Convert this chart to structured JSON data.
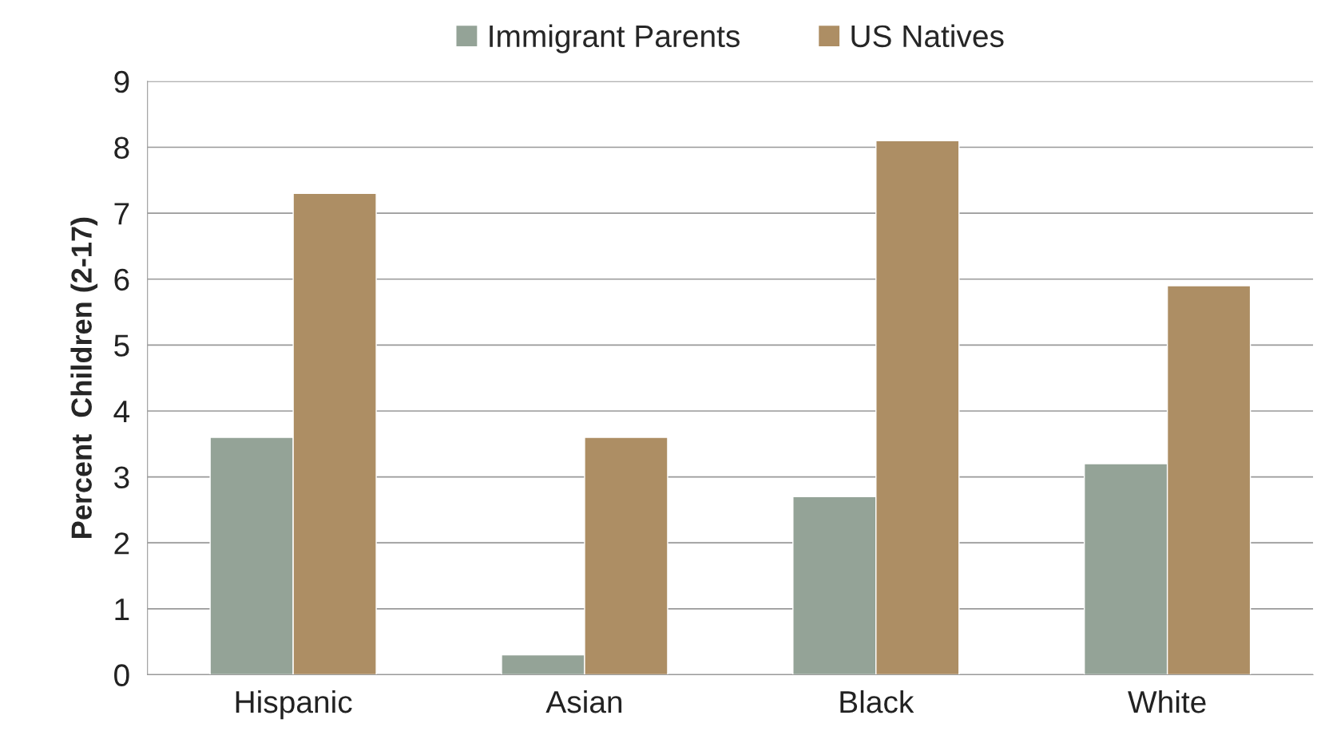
{
  "chart_data": {
    "type": "bar",
    "ylabel": "Percent  Children (2-17)",
    "categories": [
      "Hispanic",
      "Asian",
      "Black",
      "White"
    ],
    "series": [
      {
        "name": "Immigrant Parents",
        "color": "#94a397",
        "values": [
          3.6,
          0.3,
          2.7,
          3.2
        ]
      },
      {
        "name": "US Natives",
        "color": "#ad8e64",
        "values": [
          7.3,
          3.6,
          8.1,
          5.9
        ]
      }
    ],
    "ylim": [
      0,
      9
    ],
    "yticks": [
      0,
      1,
      2,
      3,
      4,
      5,
      6,
      7,
      8,
      9
    ],
    "grid": "y",
    "legend": "top"
  }
}
